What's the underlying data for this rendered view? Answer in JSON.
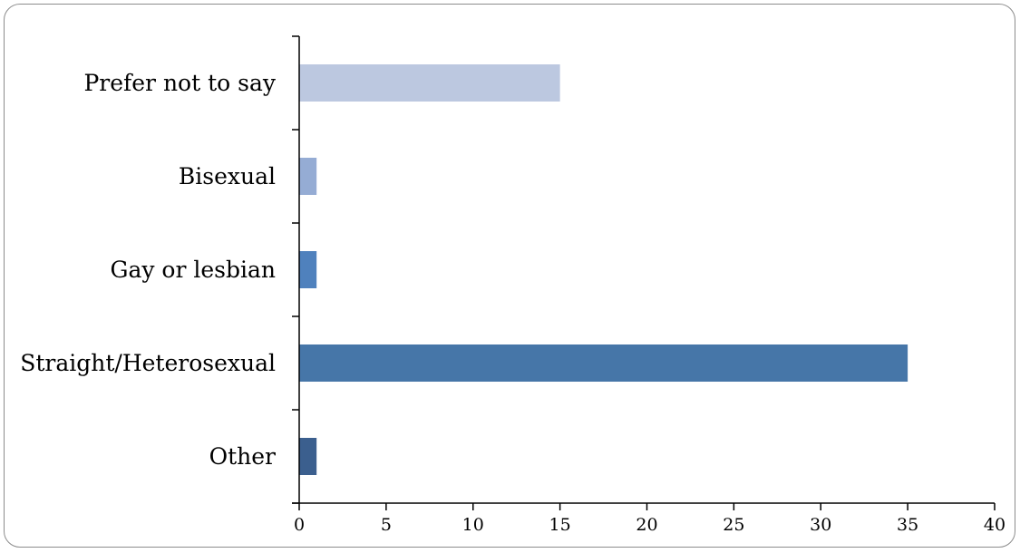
{
  "chart_data": {
    "type": "bar",
    "orientation": "horizontal",
    "categories": [
      "Prefer not to say",
      "Bisexual",
      "Gay or lesbian",
      "Straight/Heterosexual",
      "Other"
    ],
    "values": [
      15,
      1,
      1,
      35,
      1
    ],
    "colors": [
      "#bcc8e0",
      "#95acd4",
      "#4f81bd",
      "#4676a8",
      "#3b5f8e"
    ],
    "xlim": [
      0,
      40
    ],
    "xticks": [
      0,
      5,
      10,
      15,
      20,
      25,
      30,
      35,
      40
    ],
    "grid": false,
    "legend": "none"
  }
}
